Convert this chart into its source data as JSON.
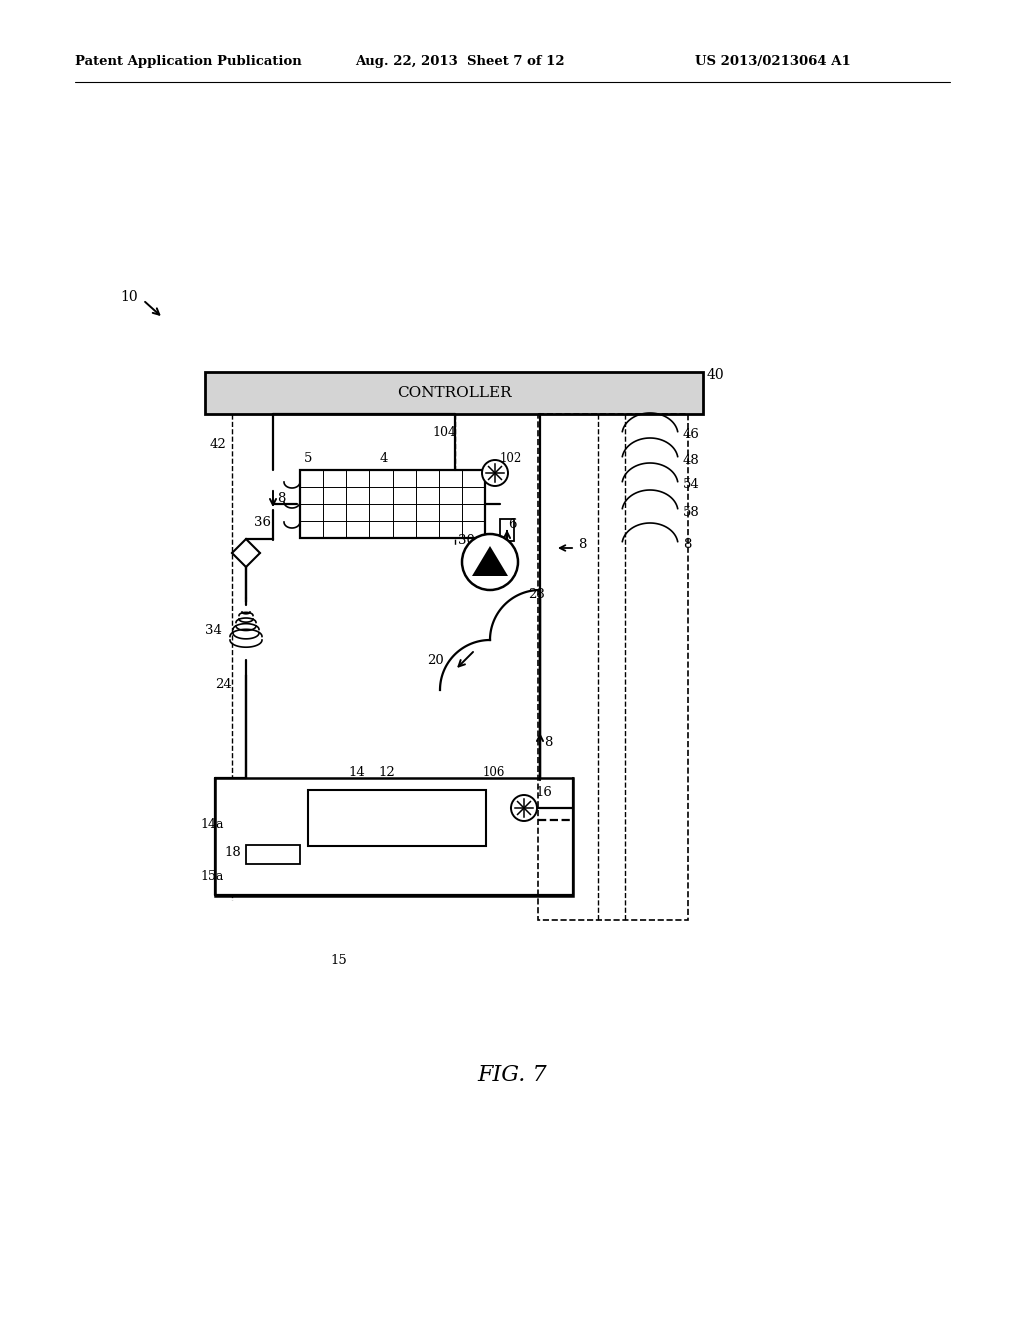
{
  "bg_color": "#ffffff",
  "header_left": "Patent Application Publication",
  "header_mid": "Aug. 22, 2013  Sheet 7 of 12",
  "header_right": "US 2013/0213064 A1",
  "fig_label": "FIG. 7",
  "controller_label": "CONTROLLER"
}
